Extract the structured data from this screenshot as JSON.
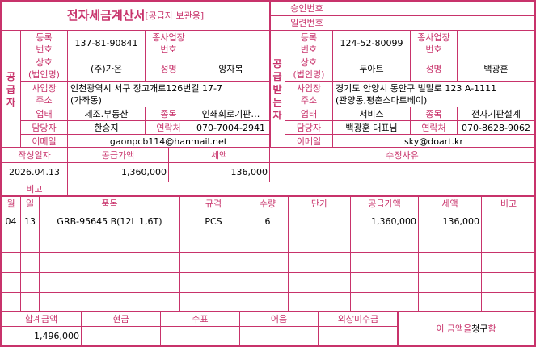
{
  "title": {
    "main": "전자세금계산서",
    "sub": "[공급자 보관용]"
  },
  "approval": {
    "label": "승인번호",
    "value": ""
  },
  "serial": {
    "label": "일련번호",
    "value": ""
  },
  "supplier": {
    "side_label": [
      "공",
      "급",
      "자"
    ],
    "reg_no_label": "등록\n번호",
    "reg_no": "137-81-90841",
    "sub_biz_label": "종사업장\n번호",
    "sub_biz": "",
    "name_label": "상호\n(법인명)",
    "name": "(주)가온",
    "rep_label": "성명",
    "rep": "양자복",
    "addr_label": "사업장\n주소",
    "addr": "인천광역시 서구 장고개로126번길 17-7\n(가좌동)",
    "type_label": "업태",
    "type": "제조.부동산",
    "item_label": "종목",
    "item": "인쇄회로기판…",
    "contact_label": "담당자",
    "contact": "한승지",
    "phone_label": "연락처",
    "phone": "070-7004-2941",
    "email_label": "이메일",
    "email": "gaonpcb114@hanmail.net"
  },
  "receiver": {
    "side_label": [
      "공",
      "급",
      "받",
      "는",
      "자"
    ],
    "reg_no_label": "등록\n번호",
    "reg_no": "124-52-80099",
    "sub_biz_label": "종사업장\n번호",
    "sub_biz": "",
    "name_label": "상호\n(법인명)",
    "name": "두아트",
    "rep_label": "성명",
    "rep": "백광훈",
    "addr_label": "사업장\n주소",
    "addr": "경기도 안양시 동안구 벌말로 123 A-1111\n(관양동,평촌스마트베이)",
    "type_label": "업태",
    "type": "서비스",
    "item_label": "종목",
    "item": "전자기판설계",
    "contact_label": "담당자",
    "contact": "백광훈 대표님",
    "phone_label": "연락처",
    "phone": "070-8628-9062",
    "email_label": "이메일",
    "email": "sky@doart.kr"
  },
  "summary": {
    "date_label": "작성일자",
    "date": "2026.04.13",
    "supply_label": "공급가액",
    "supply": "1,360,000",
    "tax_label": "세액",
    "tax": "136,000",
    "reason_label": "수정사유",
    "reason": "",
    "note_label": "비고",
    "note": ""
  },
  "items": {
    "headers": [
      "월",
      "일",
      "품목",
      "규격",
      "수량",
      "단가",
      "공급가액",
      "세액",
      "비고"
    ],
    "rows": [
      [
        "04",
        "13",
        "GRB-95645 B(12L 1,6T)",
        "PCS",
        "6",
        "",
        "1,360,000",
        "136,000",
        ""
      ]
    ]
  },
  "totals": {
    "headers": [
      "합계금액",
      "현금",
      "수표",
      "어음",
      "외상미수금"
    ],
    "values": [
      "1,496,000",
      "",
      "",
      "",
      ""
    ],
    "claim_pre": "이 금액을 ",
    "claim_mid": "청구",
    "claim_post": "함"
  },
  "colors": {
    "accent": "#c8336b"
  }
}
